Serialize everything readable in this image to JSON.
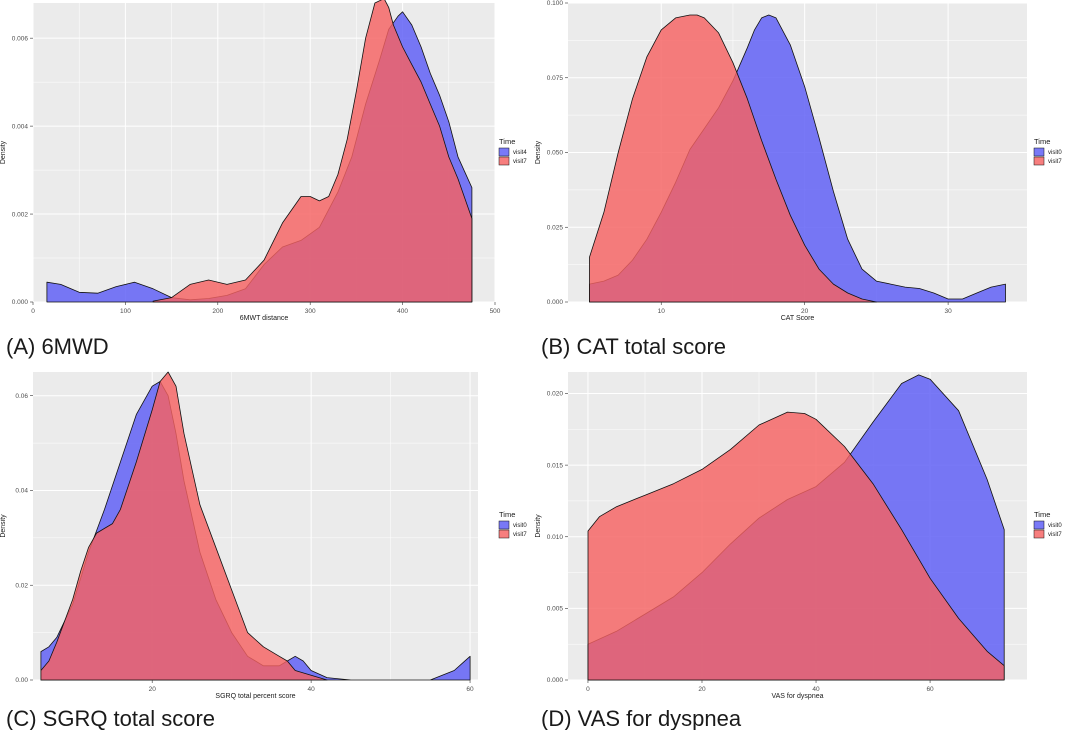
{
  "colors": {
    "panel_background": "#EBEBEB",
    "grid": "#FFFFFF",
    "visit0_fill": "#5B5BF5",
    "visit7_fill": "#F56262",
    "outline": "#111111"
  },
  "chart_data": [
    {
      "type": "area",
      "caption": "(A) 6MWD",
      "xlabel": "6MWT distance",
      "ylabel": "Density",
      "xlim": [
        0,
        500
      ],
      "ylim": [
        0,
        0.0068
      ],
      "xticks": [
        0,
        100,
        200,
        300,
        400,
        500
      ],
      "xtick_labels": [
        "0",
        "100",
        "200",
        "300",
        "400",
        "500"
      ],
      "yticks": [
        0,
        0.002,
        0.004,
        0.006
      ],
      "ytick_labels": [
        "0.000",
        "0.002",
        "0.004",
        "0.006"
      ],
      "legend": {
        "title": "Time",
        "position": "right",
        "entries": [
          "visit4",
          "visit7"
        ]
      },
      "series": [
        {
          "name": "visit4",
          "x": [
            15,
            30,
            50,
            70,
            90,
            110,
            130,
            150,
            170,
            190,
            210,
            230,
            250,
            270,
            290,
            310,
            330,
            345,
            360,
            375,
            385,
            395,
            400,
            410,
            420,
            430,
            440,
            450,
            460,
            475
          ],
          "y": [
            0.00045,
            0.0004,
            0.00022,
            0.0002,
            0.00035,
            0.00045,
            0.0003,
            0.0001,
            5e-05,
            8e-05,
            0.00015,
            0.0003,
            0.00085,
            0.00125,
            0.0014,
            0.0017,
            0.0025,
            0.0033,
            0.0045,
            0.0055,
            0.0062,
            0.0065,
            0.0066,
            0.0063,
            0.0058,
            0.0052,
            0.0047,
            0.0041,
            0.0033,
            0.0026
          ]
        },
        {
          "name": "visit7",
          "x": [
            130,
            150,
            170,
            190,
            210,
            230,
            250,
            270,
            290,
            300,
            310,
            320,
            330,
            340,
            350,
            360,
            370,
            380,
            385,
            390,
            400,
            410,
            420,
            430,
            440,
            450,
            460,
            475
          ],
          "y": [
            2e-05,
            0.0001,
            0.0004,
            0.0005,
            0.0004,
            0.0005,
            0.00095,
            0.0018,
            0.0024,
            0.0024,
            0.0023,
            0.0024,
            0.0029,
            0.0037,
            0.0048,
            0.006,
            0.0068,
            0.0069,
            0.0067,
            0.0063,
            0.0058,
            0.0054,
            0.005,
            0.0045,
            0.004,
            0.0033,
            0.0028,
            0.0019
          ]
        }
      ]
    },
    {
      "type": "area",
      "caption": "(B) CAT total score",
      "xlabel": "CAT Score",
      "ylabel": "Density",
      "xlim": [
        3.5,
        35.5
      ],
      "ylim": [
        0,
        0.1
      ],
      "xticks": [
        10,
        20,
        30
      ],
      "xtick_labels": [
        "10",
        "20",
        "30"
      ],
      "yticks": [
        0,
        0.025,
        0.05,
        0.075,
        0.1
      ],
      "ytick_labels": [
        "0.000",
        "0.025",
        "0.050",
        "0.075",
        "0.100"
      ],
      "legend": {
        "title": "Time",
        "position": "right",
        "entries": [
          "visit0",
          "visit7"
        ]
      },
      "series": [
        {
          "name": "visit0",
          "x": [
            5,
            6,
            7,
            8,
            9,
            10,
            11,
            12,
            13,
            14,
            15,
            16,
            16.5,
            17,
            17.5,
            18,
            19,
            20,
            21,
            22,
            23,
            24,
            25,
            26,
            27,
            28,
            29,
            30,
            31,
            32,
            33,
            34
          ],
          "y": [
            0.006,
            0.007,
            0.009,
            0.014,
            0.021,
            0.03,
            0.04,
            0.051,
            0.058,
            0.065,
            0.074,
            0.085,
            0.091,
            0.095,
            0.096,
            0.095,
            0.086,
            0.072,
            0.055,
            0.037,
            0.021,
            0.011,
            0.007,
            0.006,
            0.005,
            0.0045,
            0.003,
            0.001,
            0.001,
            0.003,
            0.005,
            0.006
          ]
        },
        {
          "name": "visit7",
          "x": [
            5,
            6,
            7,
            8,
            9,
            10,
            11,
            12,
            12.5,
            13,
            14,
            15,
            16,
            17,
            18,
            19,
            20,
            21,
            22,
            23,
            24,
            25
          ],
          "y": [
            0.015,
            0.03,
            0.05,
            0.068,
            0.082,
            0.091,
            0.095,
            0.096,
            0.096,
            0.095,
            0.09,
            0.08,
            0.068,
            0.054,
            0.041,
            0.029,
            0.019,
            0.011,
            0.006,
            0.003,
            0.001,
            0.0
          ]
        }
      ]
    },
    {
      "type": "area",
      "caption": "(C) SGRQ total score",
      "xlabel": "SGRQ total percent score",
      "ylabel": "Density",
      "xlim": [
        5,
        61
      ],
      "ylim": [
        0,
        0.065
      ],
      "xticks": [
        20,
        40,
        60
      ],
      "xtick_labels": [
        "20",
        "40",
        "60"
      ],
      "yticks": [
        0,
        0.02,
        0.04,
        0.06
      ],
      "ytick_labels": [
        "0.00",
        "0.02",
        "0.04",
        "0.06"
      ],
      "legend": {
        "title": "Time",
        "position": "right",
        "entries": [
          "visit0",
          "visit7"
        ]
      },
      "series": [
        {
          "name": "visit0",
          "x": [
            6,
            7,
            8,
            10,
            12,
            14,
            16,
            18,
            20,
            21,
            22,
            23,
            24,
            26,
            28,
            30,
            32,
            34,
            36,
            37,
            38,
            39,
            40,
            42,
            45,
            50,
            55,
            58,
            59,
            60
          ],
          "y": [
            0.006,
            0.007,
            0.009,
            0.016,
            0.027,
            0.036,
            0.046,
            0.056,
            0.062,
            0.063,
            0.06,
            0.052,
            0.042,
            0.027,
            0.017,
            0.01,
            0.005,
            0.003,
            0.003,
            0.004,
            0.005,
            0.004,
            0.002,
            0.0005,
            0.0,
            0.0,
            0.0,
            0.002,
            0.0035,
            0.005
          ]
        },
        {
          "name": "visit7",
          "x": [
            6,
            7,
            8,
            10,
            11,
            12,
            13,
            14,
            15,
            16,
            18,
            20,
            21,
            22,
            23,
            24,
            26,
            28,
            30,
            32,
            34,
            36,
            37,
            38,
            40,
            42
          ],
          "y": [
            0.002,
            0.004,
            0.008,
            0.017,
            0.023,
            0.028,
            0.031,
            0.032,
            0.033,
            0.036,
            0.046,
            0.057,
            0.063,
            0.065,
            0.062,
            0.052,
            0.037,
            0.028,
            0.019,
            0.01,
            0.007,
            0.005,
            0.004,
            0.002,
            0.001,
            0.0
          ]
        }
      ]
    },
    {
      "type": "area",
      "caption": "(D) VAS for dyspnea",
      "xlabel": "VAS for dyspnea",
      "ylabel": "Density",
      "xlim": [
        -3.5,
        77
      ],
      "ylim": [
        0,
        0.0215
      ],
      "xticks": [
        0,
        20,
        40,
        60
      ],
      "xtick_labels": [
        "0",
        "20",
        "40",
        "60"
      ],
      "yticks": [
        0,
        0.005,
        0.01,
        0.015,
        0.02
      ],
      "ytick_labels": [
        "0.000",
        "0.005",
        "0.010",
        "0.015",
        "0.020"
      ],
      "legend": {
        "title": "Time",
        "position": "right",
        "entries": [
          "visit0",
          "visit7"
        ]
      },
      "series": [
        {
          "name": "visit0",
          "x": [
            0,
            5,
            10,
            15,
            20,
            25,
            30,
            35,
            40,
            45,
            50,
            55,
            58,
            60,
            65,
            70,
            73
          ],
          "y": [
            0.0025,
            0.0034,
            0.0046,
            0.0058,
            0.0075,
            0.0095,
            0.0113,
            0.0126,
            0.0135,
            0.0152,
            0.018,
            0.0207,
            0.0213,
            0.021,
            0.0188,
            0.014,
            0.0105
          ]
        },
        {
          "name": "visit7",
          "x": [
            0,
            2,
            5,
            10,
            15,
            20,
            25,
            30,
            35,
            38,
            40,
            45,
            50,
            55,
            60,
            65,
            70,
            73
          ],
          "y": [
            0.0104,
            0.0114,
            0.0121,
            0.0129,
            0.0137,
            0.0147,
            0.0161,
            0.0178,
            0.0187,
            0.0186,
            0.0182,
            0.0163,
            0.0137,
            0.0105,
            0.0071,
            0.0043,
            0.002,
            0.001
          ]
        }
      ]
    }
  ]
}
